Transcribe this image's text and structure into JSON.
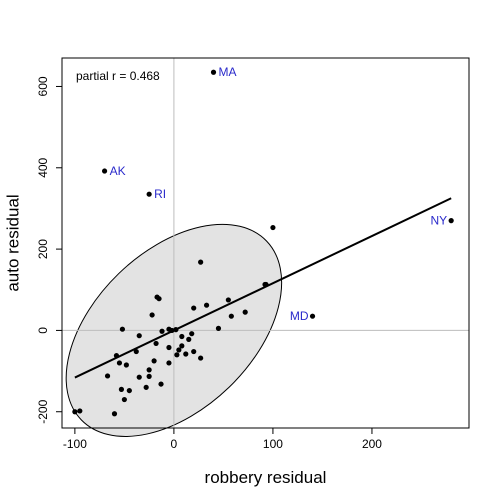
{
  "chart_data": {
    "type": "scatter",
    "title": "",
    "xlabel": "robbery residual",
    "ylabel": "auto residual",
    "xlim": [
      -113,
      298
    ],
    "ylim": [
      -240,
      670
    ],
    "x_ticks": [
      -100,
      0,
      100,
      200
    ],
    "y_ticks": [
      -200,
      0,
      200,
      400,
      600
    ],
    "grid": false,
    "annotation": "partial r = 0.468",
    "reference_lines": {
      "x": 0,
      "y": 0
    },
    "regression_line": {
      "x": [
        -100,
        280
      ],
      "y": [
        -116,
        325
      ]
    },
    "ellipse": {
      "center": [
        0,
        0
      ],
      "semi_axes": [
        130,
        80
      ],
      "angle_deg": 44
    },
    "labeled_points": [
      {
        "label": "MA",
        "x": 40,
        "y": 635
      },
      {
        "label": "AK",
        "x": -70,
        "y": 392
      },
      {
        "label": "RI",
        "x": -25,
        "y": 335
      },
      {
        "label": "NY",
        "x": 280,
        "y": 270
      },
      {
        "label": "MD",
        "x": 140,
        "y": 35
      }
    ],
    "points": [
      {
        "x": -95,
        "y": -198
      },
      {
        "x": -100,
        "y": -200
      },
      {
        "x": -60,
        "y": -205
      },
      {
        "x": -50,
        "y": -170
      },
      {
        "x": -53,
        "y": -145
      },
      {
        "x": -45,
        "y": -148
      },
      {
        "x": -28,
        "y": -140
      },
      {
        "x": -13,
        "y": -132
      },
      {
        "x": -25,
        "y": -113
      },
      {
        "x": -35,
        "y": -115
      },
      {
        "x": -67,
        "y": -112
      },
      {
        "x": -25,
        "y": -97
      },
      {
        "x": -48,
        "y": -85
      },
      {
        "x": -55,
        "y": -80
      },
      {
        "x": -58,
        "y": -62
      },
      {
        "x": -38,
        "y": -52
      },
      {
        "x": -20,
        "y": -75
      },
      {
        "x": -5,
        "y": -80
      },
      {
        "x": -35,
        "y": -13
      },
      {
        "x": -52,
        "y": 3
      },
      {
        "x": -18,
        "y": -32
      },
      {
        "x": -12,
        "y": -2
      },
      {
        "x": -5,
        "y": -42
      },
      {
        "x": -2,
        "y": 0
      },
      {
        "x": 2,
        "y": 2
      },
      {
        "x": 3,
        "y": -60
      },
      {
        "x": 5,
        "y": -48
      },
      {
        "x": 8,
        "y": -38
      },
      {
        "x": 8,
        "y": -15
      },
      {
        "x": 12,
        "y": -58
      },
      {
        "x": 15,
        "y": -22
      },
      {
        "x": 18,
        "y": -8
      },
      {
        "x": 20,
        "y": -52
      },
      {
        "x": 27,
        "y": -68
      },
      {
        "x": 20,
        "y": 55
      },
      {
        "x": 33,
        "y": 62
      },
      {
        "x": 45,
        "y": 5
      },
      {
        "x": 55,
        "y": 75
      },
      {
        "x": 58,
        "y": 35
      },
      {
        "x": 72,
        "y": 45
      },
      {
        "x": -17,
        "y": 82
      },
      {
        "x": -15,
        "y": 78
      },
      {
        "x": -22,
        "y": 38
      },
      {
        "x": 27,
        "y": 168
      },
      {
        "x": 92,
        "y": 113
      },
      {
        "x": 93,
        "y": 113
      },
      {
        "x": 100,
        "y": 253
      },
      {
        "x": -5,
        "y": 3
      }
    ],
    "colors": {
      "points": "#000000",
      "labeled_point_text": "#2a2acb",
      "ellipse_fill": "#e3e3e3",
      "ellipse_stroke": "#000000",
      "regression_line": "#000000",
      "reference_lines": "#bdbdbd",
      "frame": "#000000"
    }
  }
}
